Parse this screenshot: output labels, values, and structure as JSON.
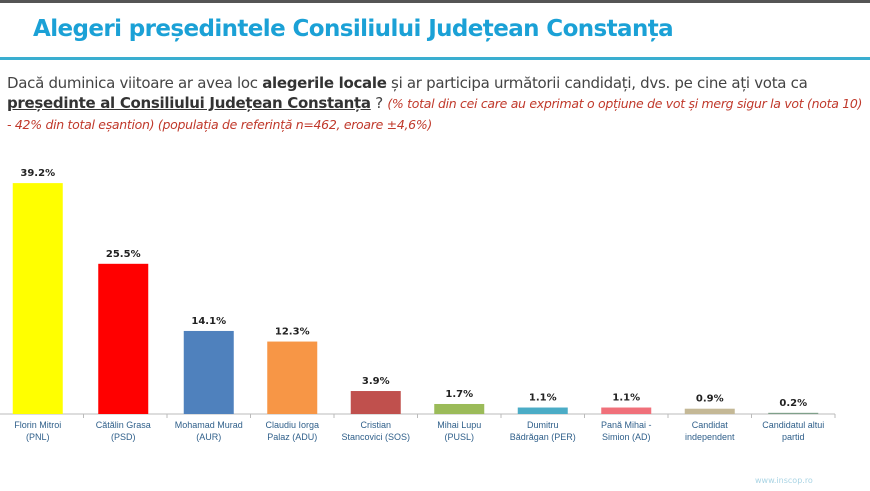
{
  "title": "Alegeri președintele Consiliului Județean Constanța",
  "question": {
    "part1": "Dacă duminica viitoare ar avea loc ",
    "bold1": "alegerile locale",
    "part2": " și ar participa următorii candidați, dvs. pe cine ați vota ca ",
    "underline": "președinte al Consiliului Județean  Constanța",
    "part3": " ? ",
    "note": "(% total din cei care au exprimat o opțiune de vot și merg sigur la vot (nota 10)  - 42% din total eșantion) (populația de referință n=462, eroare ±4,6%)"
  },
  "watermark": "www.inscop.ro",
  "chart_data": {
    "type": "bar",
    "categories": [
      "Florin Mitroi (PNL)",
      "Cătălin Grasa (PSD)",
      "Mohamad Murad (AUR)",
      "Claudiu Iorga Palaz  (ADU)",
      "Cristian Stancovici (SOS)",
      "Mihai Lupu (PUSL)",
      "Dumitru Bădrăgan (PER)",
      "Pană Mihai - Simion (AD)",
      "Candidat independent",
      "Candidatul altui partid"
    ],
    "values": [
      39.2,
      25.5,
      14.1,
      12.3,
      3.9,
      1.7,
      1.1,
      1.1,
      0.9,
      0.2
    ],
    "labels": [
      "39.2%",
      "25.5%",
      "14.1%",
      "12.3%",
      "3.9%",
      "1.7%",
      "1.1%",
      "1.1%",
      "0.9%",
      "0.2%"
    ],
    "colors": [
      "#ffff00",
      "#ff0000",
      "#4f81bd",
      "#f79646",
      "#c0504d",
      "#9bbb59",
      "#4bacc6",
      "#f0707a",
      "#c4b896",
      "#7fa08a"
    ],
    "ylim": [
      0,
      40
    ],
    "grid": false,
    "legend": "none"
  }
}
